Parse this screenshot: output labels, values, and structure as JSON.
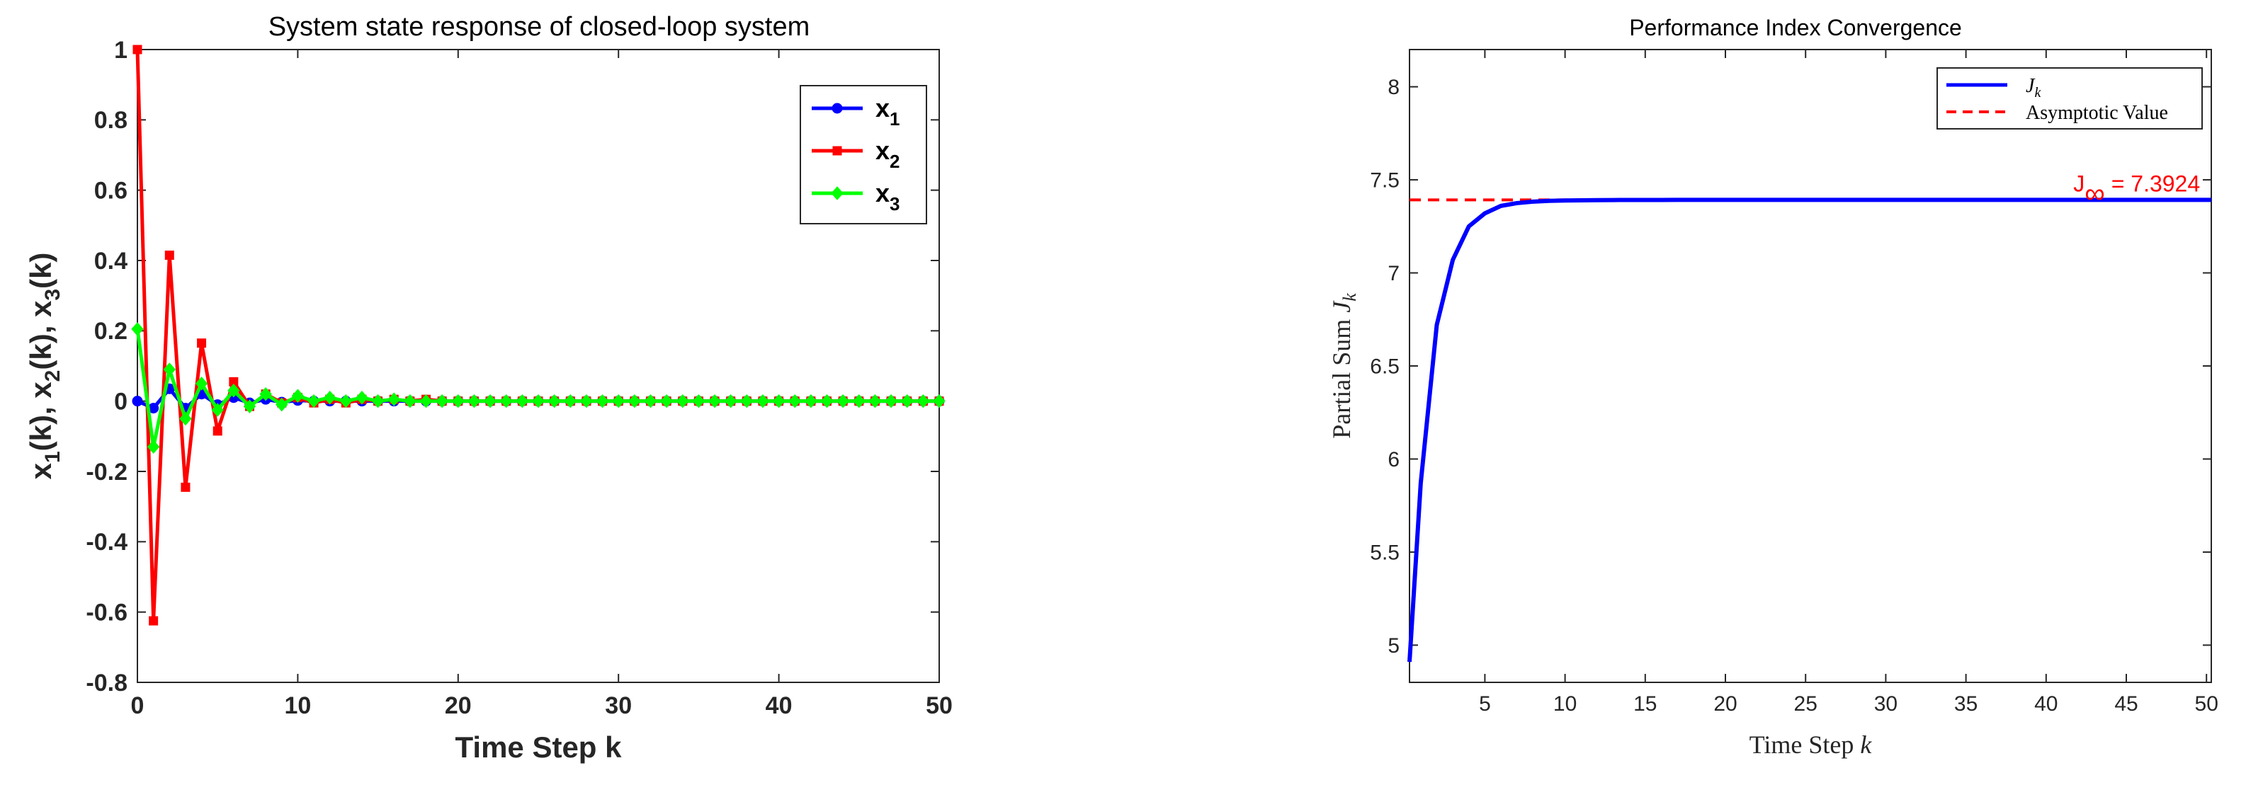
{
  "chart_data": [
    {
      "type": "line",
      "title": "System state response of closed-loop system",
      "xlabel": "Time Step k",
      "ylabel": "x1(k), x2(k), x3(k)",
      "xlim": [
        0,
        50
      ],
      "ylim": [
        -0.8,
        1
      ],
      "xticks": [
        "0",
        "10",
        "20",
        "30",
        "40",
        "50"
      ],
      "yticks": [
        "-0.8",
        "-0.6",
        "-0.4",
        "-0.2",
        "0",
        "0.2",
        "0.4",
        "0.6",
        "0.8",
        "1"
      ],
      "grid": false,
      "legend_position": "top-right",
      "x": [
        0,
        1,
        2,
        3,
        4,
        5,
        6,
        7,
        8,
        9,
        10,
        11,
        12,
        13,
        14,
        15,
        16,
        17,
        18,
        19,
        20,
        21,
        22,
        23,
        24,
        25,
        26,
        27,
        28,
        29,
        30,
        31,
        32,
        33,
        34,
        35,
        36,
        37,
        38,
        39,
        40,
        41,
        42,
        43,
        44,
        45,
        46,
        47,
        48,
        49,
        50
      ],
      "series": [
        {
          "name": "x1",
          "legend_main": "x",
          "legend_sub": "1",
          "color": "#0000ff",
          "marker": "circle",
          "values": [
            0,
            -0.02,
            0.035,
            -0.02,
            0.02,
            -0.01,
            0.01,
            -0.005,
            0.005,
            -0.003,
            0.002,
            0,
            0,
            0,
            0,
            0,
            0,
            0,
            0,
            0,
            0,
            0,
            0,
            0,
            0,
            0,
            0,
            0,
            0,
            0,
            0,
            0,
            0,
            0,
            0,
            0,
            0,
            0,
            0,
            0,
            0,
            0,
            0,
            0,
            0,
            0,
            0,
            0,
            0,
            0,
            0
          ]
        },
        {
          "name": "x2",
          "legend_main": "x",
          "legend_sub": "2",
          "color": "#ff0000",
          "marker": "square",
          "values": [
            1,
            -0.625,
            0.415,
            -0.245,
            0.165,
            -0.085,
            0.055,
            -0.015,
            0.02,
            -0.005,
            0.01,
            -0.005,
            0.005,
            -0.005,
            0.005,
            0,
            0.005,
            0,
            0.005,
            0,
            0,
            0,
            0,
            0,
            0,
            0,
            0,
            0,
            0,
            0,
            0,
            0,
            0,
            0,
            0,
            0,
            0,
            0,
            0,
            0,
            0,
            0,
            0,
            0,
            0,
            0,
            0,
            0,
            0,
            0,
            0
          ]
        },
        {
          "name": "x3",
          "legend_main": "x",
          "legend_sub": "3",
          "color": "#00ff00",
          "marker": "diamond",
          "values": [
            0.205,
            -0.13,
            0.09,
            -0.05,
            0.05,
            -0.025,
            0.03,
            -0.015,
            0.02,
            -0.01,
            0.015,
            0,
            0.01,
            0,
            0.01,
            0,
            0.005,
            0,
            0,
            0,
            0,
            0,
            0,
            0,
            0,
            0,
            0,
            0,
            0,
            0,
            0,
            0,
            0,
            0,
            0,
            0,
            0,
            0,
            0,
            0,
            0,
            0,
            0,
            0,
            0,
            0,
            0,
            0,
            0,
            0,
            0
          ]
        }
      ]
    },
    {
      "type": "line",
      "title": "Performance Index Convergence",
      "xlabel": "Time Step k",
      "ylabel": "Partial Sum Jk",
      "xlim": [
        0.3,
        50.3
      ],
      "ylim": [
        4.8,
        8.2
      ],
      "xticks": [
        "5",
        "10",
        "15",
        "20",
        "25",
        "30",
        "35",
        "40",
        "45",
        "50"
      ],
      "yticks": [
        "5",
        "5.5",
        "6",
        "6.5",
        "7",
        "7.5",
        "8"
      ],
      "grid": false,
      "legend_position": "top-right",
      "x": [
        0.3,
        1,
        2,
        3,
        4,
        5,
        6,
        7,
        8,
        9,
        10,
        11,
        12,
        13,
        14,
        15,
        16,
        17,
        18,
        19,
        20,
        21,
        22,
        23,
        24,
        25,
        26,
        27,
        28,
        29,
        30,
        31,
        32,
        33,
        34,
        35,
        36,
        37,
        38,
        39,
        40,
        41,
        42,
        43,
        44,
        45,
        46,
        47,
        48,
        49,
        50.3
      ],
      "series": [
        {
          "name": "Jk",
          "legend_main": "J",
          "legend_sub": "k",
          "color": "#0000ff",
          "style": "solid",
          "values": [
            4.91,
            5.87,
            6.72,
            7.07,
            7.25,
            7.32,
            7.36,
            7.375,
            7.383,
            7.387,
            7.389,
            7.39,
            7.391,
            7.3915,
            7.392,
            7.392,
            7.392,
            7.3922,
            7.3923,
            7.3923,
            7.3924,
            7.3924,
            7.3924,
            7.3924,
            7.3924,
            7.3924,
            7.3924,
            7.3924,
            7.3924,
            7.3924,
            7.3924,
            7.3924,
            7.3924,
            7.3924,
            7.3924,
            7.3924,
            7.3924,
            7.3924,
            7.3924,
            7.3924,
            7.3924,
            7.3924,
            7.3924,
            7.3924,
            7.3924,
            7.3924,
            7.3924,
            7.3924,
            7.3924,
            7.3924,
            7.3924
          ]
        },
        {
          "name": "Asymptotic Value",
          "legend_main": "Asymptotic Value",
          "legend_sub": "",
          "color": "#ff0000",
          "style": "dashed",
          "constant": 7.3924
        }
      ],
      "annotation": {
        "main": "J",
        "sub": "∞",
        "rest": " = 7.3924",
        "color": "#ff0000",
        "x": 41.7,
        "y": 7.3924
      }
    }
  ]
}
